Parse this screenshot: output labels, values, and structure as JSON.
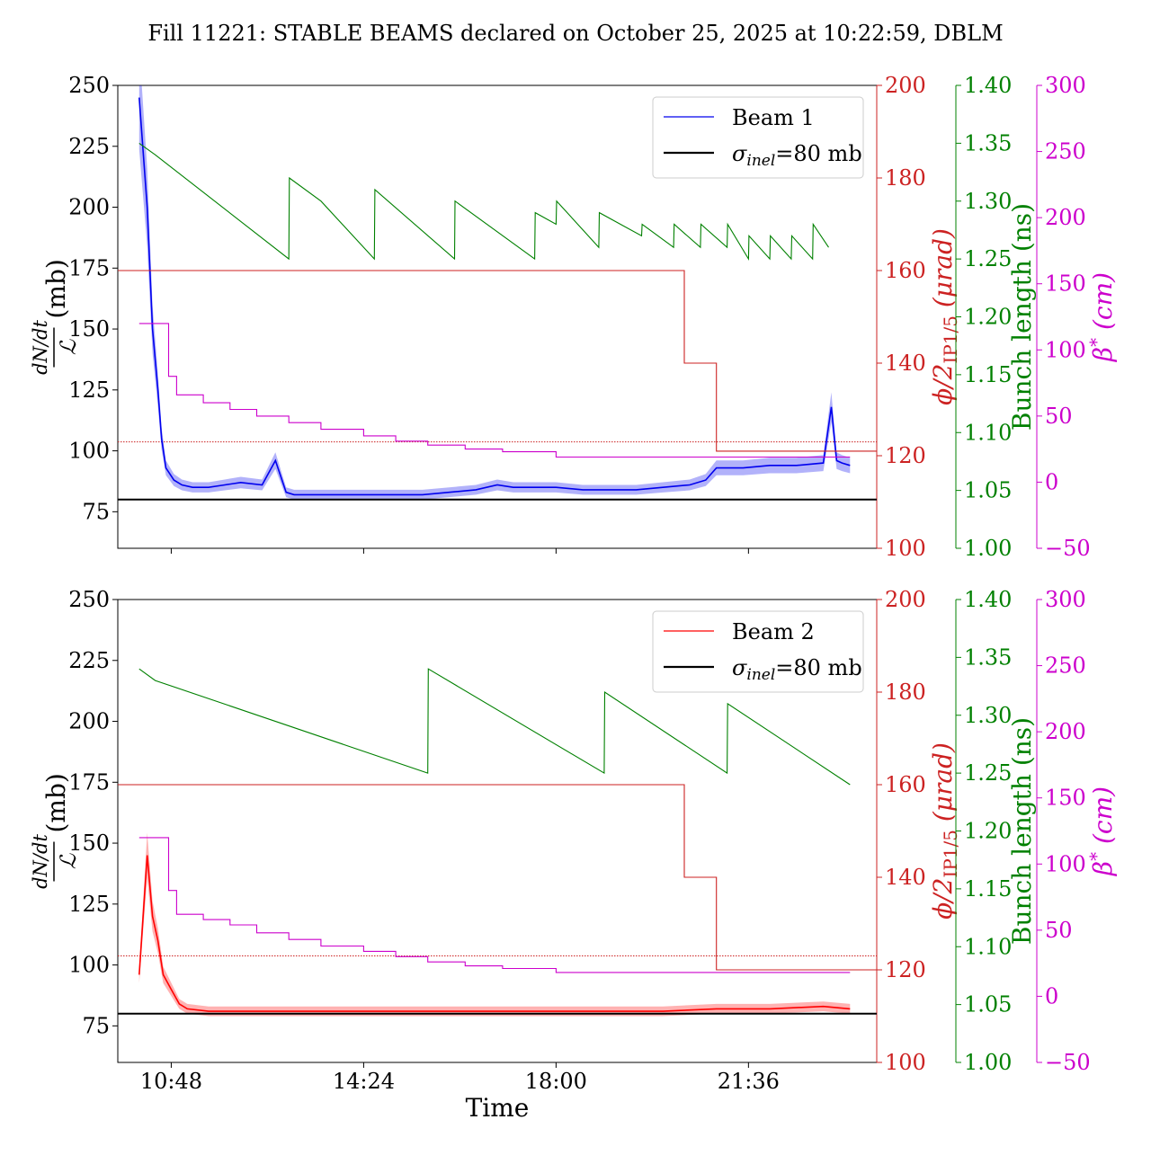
{
  "title": "Fill 11221: STABLE BEAMS declared on October 25, 2025 at 10:22:59, DBLM",
  "xlabel": "Time",
  "x_ticks": [
    "10:48",
    "14:24",
    "18:00",
    "21:36"
  ],
  "colors": {
    "beam1": "#0000ee",
    "beam2": "#ff0000",
    "sigma": "#000000",
    "phi": "#cc2222",
    "bunch": "#008000",
    "beta": "#cc00cc"
  },
  "axes": {
    "left": {
      "label_lhs": "dN/dt",
      "label_den": "ℒ",
      "label_unit": "(mb)",
      "range": [
        60,
        250
      ],
      "ticks": [
        "75",
        "100",
        "125",
        "150",
        "175",
        "200",
        "225",
        "250"
      ]
    },
    "phi": {
      "label": "ϕ/2IP1/5 (μrad)",
      "label_main": "ϕ/2",
      "label_sub": "IP1/5",
      "label_unit": "(μrad)",
      "range": [
        100,
        200
      ],
      "ticks": [
        "100",
        "120",
        "140",
        "160",
        "180",
        "200"
      ]
    },
    "bunch": {
      "label": "Bunch length (ns)",
      "range": [
        1.0,
        1.4
      ],
      "ticks": [
        "1.00",
        "1.05",
        "1.10",
        "1.15",
        "1.20",
        "1.25",
        "1.30",
        "1.35",
        "1.40"
      ]
    },
    "beta": {
      "label": "β* (cm)",
      "label_main": "β",
      "label_sup": "*",
      "label_unit": "(cm)",
      "range": [
        -50,
        300
      ],
      "ticks": [
        "−50",
        "0",
        "50",
        "100",
        "150",
        "200",
        "250",
        "300"
      ]
    }
  },
  "legends": [
    {
      "series": "Beam 1",
      "sigma": "σinel=80 mb",
      "sigma_sym": "σ",
      "sigma_sub": "inel",
      "sigma_rest": "=80 mb"
    },
    {
      "series": "Beam 2",
      "sigma": "σinel=80 mb",
      "sigma_sym": "σ",
      "sigma_sub": "inel",
      "sigma_rest": "=80 mb"
    }
  ],
  "chart_data": [
    {
      "type": "line",
      "panel": "top",
      "xlabel": "Time",
      "x_unit": "hours since 00:00",
      "x_range": [
        9.8,
        24.0
      ],
      "sigma_inel": 80,
      "series": [
        {
          "name": "Beam 1",
          "axis": "left",
          "x": [
            10.2,
            10.35,
            10.45,
            10.55,
            10.62,
            10.7,
            10.85,
            11.0,
            11.2,
            11.5,
            11.8,
            12.1,
            12.5,
            12.75,
            12.95,
            13.1,
            13.2,
            13.5,
            14.0,
            14.5,
            15.0,
            15.5,
            16.0,
            16.5,
            16.9,
            17.2,
            17.6,
            18.0,
            18.5,
            19.0,
            19.5,
            20.0,
            20.5,
            20.8,
            21.0,
            21.5,
            22.0,
            22.5,
            23.0,
            23.15,
            23.25,
            23.35,
            23.5
          ],
          "y": [
            245,
            200,
            150,
            125,
            105,
            93,
            88,
            86,
            85,
            85,
            86,
            87,
            86,
            96,
            83,
            82,
            82,
            82,
            82,
            82,
            82,
            82,
            83,
            84,
            86,
            85,
            85,
            85,
            84,
            84,
            84,
            85,
            86,
            88,
            93,
            93,
            94,
            94,
            95,
            118,
            96,
            95,
            94
          ]
        },
        {
          "name": "Bunch length",
          "axis": "bunch",
          "x": [
            10.2,
            10.5,
            13.0,
            13.01,
            13.6,
            14.6,
            14.61,
            16.1,
            16.11,
            17.6,
            17.61,
            18.0,
            18.01,
            18.8,
            18.81,
            19.6,
            19.61,
            20.2,
            20.21,
            20.7,
            20.71,
            21.2,
            21.21,
            21.6,
            21.61,
            22.0,
            22.01,
            22.4,
            22.41,
            22.8,
            22.81,
            23.1
          ],
          "y": [
            1.35,
            1.34,
            1.25,
            1.32,
            1.3,
            1.25,
            1.31,
            1.25,
            1.3,
            1.25,
            1.29,
            1.28,
            1.3,
            1.26,
            1.29,
            1.27,
            1.28,
            1.26,
            1.28,
            1.26,
            1.28,
            1.26,
            1.28,
            1.25,
            1.27,
            1.25,
            1.27,
            1.25,
            1.27,
            1.25,
            1.28,
            1.26
          ]
        },
        {
          "name": "ϕ/2 IP1/5",
          "axis": "phi",
          "x": [
            9.8,
            19.3,
            20.4,
            21.0,
            24.0
          ],
          "y": [
            160,
            160,
            140,
            121,
            121
          ]
        },
        {
          "name": "β*",
          "axis": "beta",
          "x": [
            10.2,
            10.55,
            10.75,
            10.9,
            11.4,
            11.9,
            12.4,
            13.0,
            13.6,
            14.4,
            15.0,
            15.6,
            16.3,
            17.0,
            18.0,
            23.5
          ],
          "y": [
            120,
            120,
            80,
            66,
            60,
            55,
            50,
            45,
            40,
            35,
            31,
            28,
            25,
            23,
            19,
            19
          ]
        },
        {
          "name": "ϕ/2 reference",
          "axis": "phi",
          "x": [
            9.8,
            24.0
          ],
          "y": [
            123,
            123
          ]
        }
      ]
    },
    {
      "type": "line",
      "panel": "bottom",
      "xlabel": "Time",
      "x_unit": "hours since 00:00",
      "x_range": [
        9.8,
        24.0
      ],
      "sigma_inel": 80,
      "series": [
        {
          "name": "Beam 2",
          "axis": "left",
          "x": [
            10.2,
            10.35,
            10.45,
            10.55,
            10.65,
            10.8,
            10.95,
            11.1,
            11.5,
            12.0,
            13.0,
            14.0,
            15.0,
            16.0,
            17.0,
            18.0,
            19.0,
            20.0,
            21.0,
            22.0,
            23.0,
            23.5
          ],
          "y": [
            96,
            145,
            120,
            110,
            96,
            90,
            84,
            82,
            81,
            81,
            81,
            81,
            81,
            81,
            81,
            81,
            81,
            81,
            82,
            82,
            83,
            82
          ]
        },
        {
          "name": "Bunch length",
          "axis": "bunch",
          "x": [
            10.2,
            10.5,
            15.6,
            15.61,
            18.9,
            18.91,
            21.2,
            21.21,
            23.5
          ],
          "y": [
            1.34,
            1.33,
            1.25,
            1.34,
            1.25,
            1.32,
            1.25,
            1.31,
            1.24
          ]
        },
        {
          "name": "ϕ/2 IP1/5",
          "axis": "phi",
          "x": [
            9.8,
            19.3,
            20.4,
            21.0,
            24.0
          ],
          "y": [
            160,
            160,
            140,
            120,
            120
          ]
        },
        {
          "name": "β*",
          "axis": "beta",
          "x": [
            10.2,
            10.5,
            10.75,
            10.9,
            11.4,
            11.9,
            12.4,
            13.0,
            13.6,
            14.4,
            15.0,
            15.6,
            16.3,
            17.0,
            18.0,
            23.5
          ],
          "y": [
            120,
            120,
            80,
            62,
            58,
            54,
            48,
            43,
            38,
            34,
            30,
            26,
            23,
            21,
            18,
            18
          ]
        },
        {
          "name": "ϕ/2 reference",
          "axis": "phi",
          "x": [
            9.8,
            24.0
          ],
          "y": [
            123,
            123
          ]
        }
      ]
    }
  ]
}
